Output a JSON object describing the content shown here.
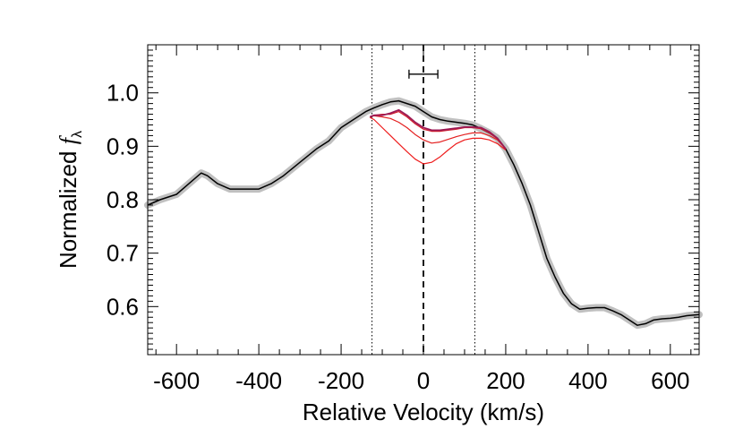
{
  "chart_data": {
    "type": "line",
    "title": "",
    "xlabel": "Relative Velocity (km/s)",
    "ylabel_main": "Normalized ",
    "ylabel_symbol": "f",
    "ylabel_subscript": "λ",
    "xlim": [
      -670,
      670
    ],
    "ylim": [
      0.51,
      1.09
    ],
    "xticks": [
      -600,
      -400,
      -200,
      0,
      200,
      400,
      600
    ],
    "xtick_labels": [
      "-600",
      "-400",
      "-200",
      "0",
      "200",
      "400",
      "600"
    ],
    "yticks": [
      0.6,
      0.7,
      0.8,
      0.9,
      1.0
    ],
    "ytick_labels": [
      "0.6",
      "0.7",
      "0.8",
      "0.9",
      "1.0"
    ],
    "reference_lines": {
      "dashed": [
        0
      ],
      "dotted": [
        -125,
        125
      ]
    },
    "error_bar": {
      "y": 1.035,
      "x_center": 0,
      "x_low": -35,
      "x_high": 35
    },
    "colors": {
      "observed": "#000000",
      "uncertainty_band": "#c0c0c0",
      "models": [
        "#ee1c1c",
        "#e42020",
        "#d41c28",
        "#9c1a55"
      ]
    },
    "series": [
      {
        "name": "observed",
        "x": [
          -670,
          -640,
          -600,
          -570,
          -540,
          -525,
          -500,
          -470,
          -440,
          -400,
          -370,
          -340,
          -300,
          -260,
          -230,
          -200,
          -170,
          -140,
          -120,
          -100,
          -80,
          -60,
          -40,
          -20,
          0,
          20,
          40,
          60,
          80,
          100,
          120,
          140,
          160,
          180,
          200,
          220,
          240,
          260,
          280,
          300,
          320,
          340,
          360,
          380,
          400,
          420,
          440,
          460,
          480,
          500,
          520,
          540,
          560,
          580,
          600,
          620,
          640,
          670
        ],
        "y": [
          0.79,
          0.8,
          0.81,
          0.83,
          0.85,
          0.845,
          0.83,
          0.82,
          0.82,
          0.82,
          0.83,
          0.845,
          0.87,
          0.895,
          0.91,
          0.935,
          0.95,
          0.965,
          0.972,
          0.978,
          0.983,
          0.985,
          0.98,
          0.975,
          0.965,
          0.955,
          0.95,
          0.947,
          0.945,
          0.943,
          0.94,
          0.933,
          0.925,
          0.915,
          0.895,
          0.865,
          0.83,
          0.79,
          0.74,
          0.69,
          0.655,
          0.625,
          0.605,
          0.595,
          0.597,
          0.598,
          0.598,
          0.592,
          0.585,
          0.575,
          0.565,
          0.568,
          0.575,
          0.577,
          0.578,
          0.58,
          0.583,
          0.585
        ]
      },
      {
        "name": "model-1",
        "x": [
          -130,
          -120,
          -100,
          -80,
          -60,
          -40,
          -20,
          0,
          20,
          40,
          60,
          80,
          100,
          120,
          140,
          160,
          180,
          200
        ],
        "y": [
          0.955,
          0.958,
          0.958,
          0.962,
          0.968,
          0.958,
          0.945,
          0.935,
          0.93,
          0.93,
          0.932,
          0.934,
          0.936,
          0.936,
          0.935,
          0.927,
          0.915,
          0.895
        ]
      },
      {
        "name": "model-2",
        "x": [
          -130,
          -120,
          -100,
          -80,
          -60,
          -40,
          -20,
          0,
          20,
          40,
          60,
          80,
          100,
          120,
          140,
          160,
          180,
          200
        ],
        "y": [
          0.955,
          0.958,
          0.96,
          0.96,
          0.965,
          0.955,
          0.942,
          0.932,
          0.928,
          0.928,
          0.93,
          0.932,
          0.935,
          0.935,
          0.933,
          0.925,
          0.914,
          0.895
        ]
      },
      {
        "name": "model-3",
        "x": [
          -130,
          -120,
          -100,
          -80,
          -60,
          -40,
          -20,
          0,
          20,
          40,
          60,
          80,
          100,
          120,
          140,
          160,
          180,
          200
        ],
        "y": [
          0.955,
          0.957,
          0.955,
          0.952,
          0.945,
          0.935,
          0.922,
          0.912,
          0.906,
          0.908,
          0.913,
          0.918,
          0.922,
          0.925,
          0.925,
          0.92,
          0.912,
          0.895
        ]
      },
      {
        "name": "model-4",
        "x": [
          -130,
          -120,
          -100,
          -80,
          -60,
          -40,
          -20,
          0,
          20,
          40,
          60,
          80,
          100,
          120,
          140,
          160,
          180,
          200
        ],
        "y": [
          0.954,
          0.95,
          0.935,
          0.92,
          0.905,
          0.89,
          0.876,
          0.867,
          0.87,
          0.88,
          0.893,
          0.905,
          0.912,
          0.915,
          0.915,
          0.912,
          0.905,
          0.893
        ]
      }
    ]
  }
}
